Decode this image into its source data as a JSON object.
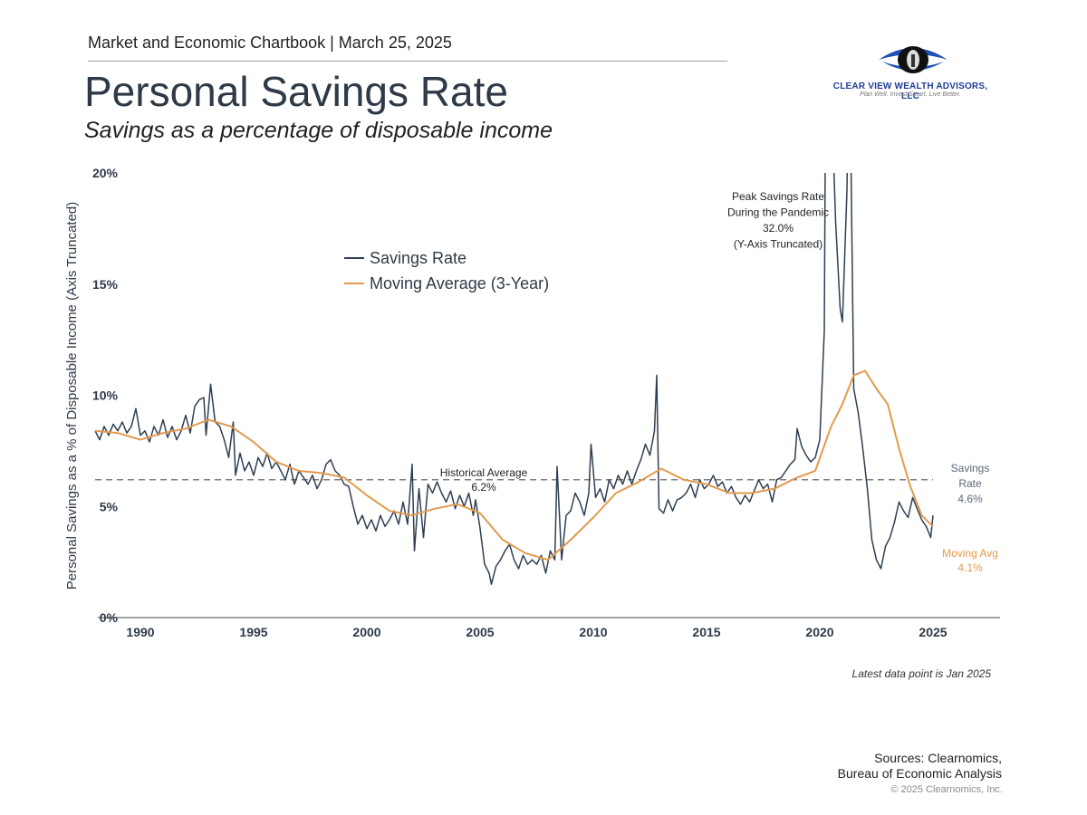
{
  "header": {
    "kicker": "Market and Economic Chartbook | March 25, 2025",
    "title": "Personal Savings Rate",
    "subtitle": "Savings as a percentage of disposable income"
  },
  "logo": {
    "name": "CLEAR VIEW WEALTH ADVISORS, LLC",
    "tagline": "Plan Well. Invest Smart. Live Better.",
    "colors": {
      "ring": "#1f4fb5",
      "eye": "#111111"
    }
  },
  "chart_data": {
    "type": "line",
    "ylabel": "Personal Savings as a % of Disposable Income (Axis Truncated)",
    "xlim": [
      1987.8,
      2028.2
    ],
    "ylim": [
      0,
      20
    ],
    "x_ticks": [
      1990,
      1995,
      2000,
      2005,
      2010,
      2015,
      2020,
      2025
    ],
    "y_ticks": [
      {
        "value": 0,
        "label": "0%"
      },
      {
        "value": 5,
        "label": "5%"
      },
      {
        "value": 10,
        "label": "10%"
      },
      {
        "value": 15,
        "label": "15%"
      },
      {
        "value": 20,
        "label": "20%"
      }
    ],
    "grid": false,
    "legend_position": "top-left",
    "series": [
      {
        "name": "Savings Rate",
        "color": "#2e3f52",
        "points": [
          [
            1988.0,
            8.4
          ],
          [
            1988.2,
            8.0
          ],
          [
            1988.4,
            8.6
          ],
          [
            1988.6,
            8.2
          ],
          [
            1988.8,
            8.7
          ],
          [
            1989.0,
            8.4
          ],
          [
            1989.2,
            8.8
          ],
          [
            1989.4,
            8.3
          ],
          [
            1989.6,
            8.6
          ],
          [
            1989.8,
            9.4
          ],
          [
            1990.0,
            8.2
          ],
          [
            1990.2,
            8.4
          ],
          [
            1990.4,
            7.9
          ],
          [
            1990.6,
            8.6
          ],
          [
            1990.8,
            8.2
          ],
          [
            1991.0,
            8.9
          ],
          [
            1991.2,
            8.1
          ],
          [
            1991.4,
            8.6
          ],
          [
            1991.6,
            8.0
          ],
          [
            1991.8,
            8.4
          ],
          [
            1992.0,
            9.1
          ],
          [
            1992.2,
            8.3
          ],
          [
            1992.4,
            9.5
          ],
          [
            1992.6,
            9.8
          ],
          [
            1992.8,
            9.9
          ],
          [
            1992.9,
            8.2
          ],
          [
            1993.1,
            10.5
          ],
          [
            1993.3,
            8.8
          ],
          [
            1993.5,
            8.6
          ],
          [
            1993.7,
            8.0
          ],
          [
            1993.9,
            7.2
          ],
          [
            1994.1,
            8.8
          ],
          [
            1994.2,
            6.4
          ],
          [
            1994.4,
            7.4
          ],
          [
            1994.6,
            6.6
          ],
          [
            1994.8,
            7.0
          ],
          [
            1995.0,
            6.4
          ],
          [
            1995.2,
            7.2
          ],
          [
            1995.4,
            6.8
          ],
          [
            1995.6,
            7.4
          ],
          [
            1995.8,
            6.7
          ],
          [
            1996.0,
            7.0
          ],
          [
            1996.2,
            6.6
          ],
          [
            1996.4,
            6.2
          ],
          [
            1996.6,
            6.9
          ],
          [
            1996.8,
            6.0
          ],
          [
            1997.0,
            6.6
          ],
          [
            1997.2,
            6.3
          ],
          [
            1997.4,
            6.0
          ],
          [
            1997.6,
            6.4
          ],
          [
            1997.8,
            5.8
          ],
          [
            1998.0,
            6.2
          ],
          [
            1998.2,
            6.9
          ],
          [
            1998.4,
            7.1
          ],
          [
            1998.6,
            6.6
          ],
          [
            1998.8,
            6.4
          ],
          [
            1999.0,
            6.0
          ],
          [
            1999.2,
            5.9
          ],
          [
            1999.4,
            5.0
          ],
          [
            1999.6,
            4.2
          ],
          [
            1999.8,
            4.6
          ],
          [
            2000.0,
            4.0
          ],
          [
            2000.2,
            4.4
          ],
          [
            2000.4,
            3.9
          ],
          [
            2000.6,
            4.6
          ],
          [
            2000.8,
            4.1
          ],
          [
            2001.0,
            4.4
          ],
          [
            2001.2,
            4.8
          ],
          [
            2001.4,
            4.2
          ],
          [
            2001.6,
            5.2
          ],
          [
            2001.8,
            4.2
          ],
          [
            2002.0,
            6.9
          ],
          [
            2002.1,
            3.0
          ],
          [
            2002.3,
            5.8
          ],
          [
            2002.5,
            3.6
          ],
          [
            2002.7,
            6.0
          ],
          [
            2002.9,
            5.6
          ],
          [
            2003.1,
            6.1
          ],
          [
            2003.3,
            5.6
          ],
          [
            2003.5,
            5.2
          ],
          [
            2003.7,
            5.7
          ],
          [
            2003.9,
            4.9
          ],
          [
            2004.1,
            5.5
          ],
          [
            2004.3,
            5.0
          ],
          [
            2004.5,
            5.6
          ],
          [
            2004.7,
            4.6
          ],
          [
            2004.8,
            5.3
          ],
          [
            2005.0,
            4.0
          ],
          [
            2005.2,
            2.4
          ],
          [
            2005.4,
            2.0
          ],
          [
            2005.5,
            1.5
          ],
          [
            2005.7,
            2.3
          ],
          [
            2005.9,
            2.6
          ],
          [
            2006.1,
            3.0
          ],
          [
            2006.3,
            3.3
          ],
          [
            2006.5,
            2.6
          ],
          [
            2006.7,
            2.2
          ],
          [
            2006.9,
            2.8
          ],
          [
            2007.1,
            2.4
          ],
          [
            2007.3,
            2.6
          ],
          [
            2007.5,
            2.4
          ],
          [
            2007.7,
            2.8
          ],
          [
            2007.9,
            2.0
          ],
          [
            2008.1,
            3.0
          ],
          [
            2008.3,
            2.6
          ],
          [
            2008.4,
            6.8
          ],
          [
            2008.6,
            2.6
          ],
          [
            2008.8,
            4.6
          ],
          [
            2009.0,
            4.8
          ],
          [
            2009.2,
            5.6
          ],
          [
            2009.4,
            5.2
          ],
          [
            2009.6,
            4.6
          ],
          [
            2009.8,
            5.6
          ],
          [
            2009.9,
            7.8
          ],
          [
            2010.1,
            5.4
          ],
          [
            2010.3,
            5.8
          ],
          [
            2010.5,
            5.2
          ],
          [
            2010.7,
            6.2
          ],
          [
            2010.9,
            5.8
          ],
          [
            2011.1,
            6.4
          ],
          [
            2011.3,
            6.0
          ],
          [
            2011.5,
            6.6
          ],
          [
            2011.7,
            6.0
          ],
          [
            2011.9,
            6.6
          ],
          [
            2012.1,
            7.1
          ],
          [
            2012.3,
            7.8
          ],
          [
            2012.5,
            7.3
          ],
          [
            2012.7,
            8.4
          ],
          [
            2012.8,
            10.9
          ],
          [
            2012.9,
            4.9
          ],
          [
            2013.1,
            4.7
          ],
          [
            2013.3,
            5.3
          ],
          [
            2013.5,
            4.8
          ],
          [
            2013.7,
            5.3
          ],
          [
            2013.9,
            5.4
          ],
          [
            2014.1,
            5.6
          ],
          [
            2014.3,
            6.0
          ],
          [
            2014.5,
            5.4
          ],
          [
            2014.7,
            6.2
          ],
          [
            2014.9,
            5.8
          ],
          [
            2015.1,
            6.0
          ],
          [
            2015.3,
            6.4
          ],
          [
            2015.5,
            5.9
          ],
          [
            2015.7,
            6.1
          ],
          [
            2015.9,
            5.6
          ],
          [
            2016.1,
            5.9
          ],
          [
            2016.3,
            5.4
          ],
          [
            2016.5,
            5.1
          ],
          [
            2016.7,
            5.5
          ],
          [
            2016.9,
            5.2
          ],
          [
            2017.1,
            5.7
          ],
          [
            2017.3,
            6.2
          ],
          [
            2017.5,
            5.8
          ],
          [
            2017.7,
            6.0
          ],
          [
            2017.9,
            5.2
          ],
          [
            2018.1,
            6.2
          ],
          [
            2018.3,
            6.3
          ],
          [
            2018.5,
            6.6
          ],
          [
            2018.7,
            6.9
          ],
          [
            2018.9,
            7.1
          ],
          [
            2019.0,
            8.5
          ],
          [
            2019.2,
            7.7
          ],
          [
            2019.4,
            7.3
          ],
          [
            2019.6,
            7.0
          ],
          [
            2019.8,
            7.2
          ],
          [
            2020.0,
            8.0
          ],
          [
            2020.2,
            12.9
          ],
          [
            2020.3,
            32.0
          ],
          [
            2020.5,
            24.0
          ],
          [
            2020.7,
            17.8
          ],
          [
            2020.9,
            13.9
          ],
          [
            2021.0,
            13.3
          ],
          [
            2021.2,
            19.2
          ],
          [
            2021.3,
            27.0
          ],
          [
            2021.5,
            10.3
          ],
          [
            2021.7,
            9.2
          ],
          [
            2021.9,
            7.6
          ],
          [
            2022.1,
            5.8
          ],
          [
            2022.3,
            3.5
          ],
          [
            2022.5,
            2.6
          ],
          [
            2022.7,
            2.2
          ],
          [
            2022.9,
            3.2
          ],
          [
            2023.1,
            3.6
          ],
          [
            2023.3,
            4.3
          ],
          [
            2023.5,
            5.2
          ],
          [
            2023.7,
            4.8
          ],
          [
            2023.9,
            4.5
          ],
          [
            2024.1,
            5.4
          ],
          [
            2024.3,
            4.9
          ],
          [
            2024.5,
            4.4
          ],
          [
            2024.7,
            4.1
          ],
          [
            2024.9,
            3.6
          ],
          [
            2025.0,
            4.6
          ]
        ]
      },
      {
        "name": "Moving Average (3-Year)",
        "color": "#e39a4c",
        "points": [
          [
            1988.0,
            8.4
          ],
          [
            1989.0,
            8.3
          ],
          [
            1990.0,
            8.0
          ],
          [
            1991.0,
            8.3
          ],
          [
            1992.0,
            8.5
          ],
          [
            1993.0,
            8.9
          ],
          [
            1994.0,
            8.6
          ],
          [
            1995.0,
            7.9
          ],
          [
            1996.0,
            7.0
          ],
          [
            1997.0,
            6.6
          ],
          [
            1998.0,
            6.5
          ],
          [
            1999.0,
            6.3
          ],
          [
            2000.0,
            5.5
          ],
          [
            2001.0,
            4.8
          ],
          [
            2002.0,
            4.6
          ],
          [
            2003.0,
            4.9
          ],
          [
            2004.0,
            5.1
          ],
          [
            2005.0,
            4.7
          ],
          [
            2006.0,
            3.5
          ],
          [
            2007.0,
            2.9
          ],
          [
            2008.0,
            2.6
          ],
          [
            2009.0,
            3.5
          ],
          [
            2010.0,
            4.5
          ],
          [
            2011.0,
            5.6
          ],
          [
            2012.0,
            6.1
          ],
          [
            2013.0,
            6.7
          ],
          [
            2014.0,
            6.2
          ],
          [
            2015.0,
            6.0
          ],
          [
            2016.0,
            5.6
          ],
          [
            2017.0,
            5.6
          ],
          [
            2018.0,
            5.8
          ],
          [
            2019.0,
            6.3
          ],
          [
            2019.8,
            6.6
          ],
          [
            2020.5,
            8.6
          ],
          [
            2021.0,
            9.6
          ],
          [
            2021.5,
            10.9
          ],
          [
            2022.0,
            11.1
          ],
          [
            2022.5,
            10.3
          ],
          [
            2023.0,
            9.6
          ],
          [
            2023.5,
            7.6
          ],
          [
            2024.0,
            5.9
          ],
          [
            2024.5,
            4.6
          ],
          [
            2025.0,
            4.1
          ]
        ]
      }
    ],
    "reference_line": {
      "value": 6.2,
      "color": "#555555"
    },
    "annotations": {
      "peak": [
        "Peak Savings Rate",
        "During the Pandemic",
        "32.0%",
        "(Y-Axis Truncated)"
      ],
      "historical_average": [
        "Historical Average",
        "6.2%"
      ],
      "savings_rate": [
        "Savings",
        "Rate",
        "4.6%"
      ],
      "moving_avg": [
        "Moving Avg",
        "4.1%"
      ]
    }
  },
  "footer": {
    "latest": "Latest data point is Jan 2025",
    "sources_line1": "Sources: Clearnomics,",
    "sources_line2": "Bureau of Economic Analysis",
    "copyright": "© 2025 Clearnomics, Inc."
  }
}
